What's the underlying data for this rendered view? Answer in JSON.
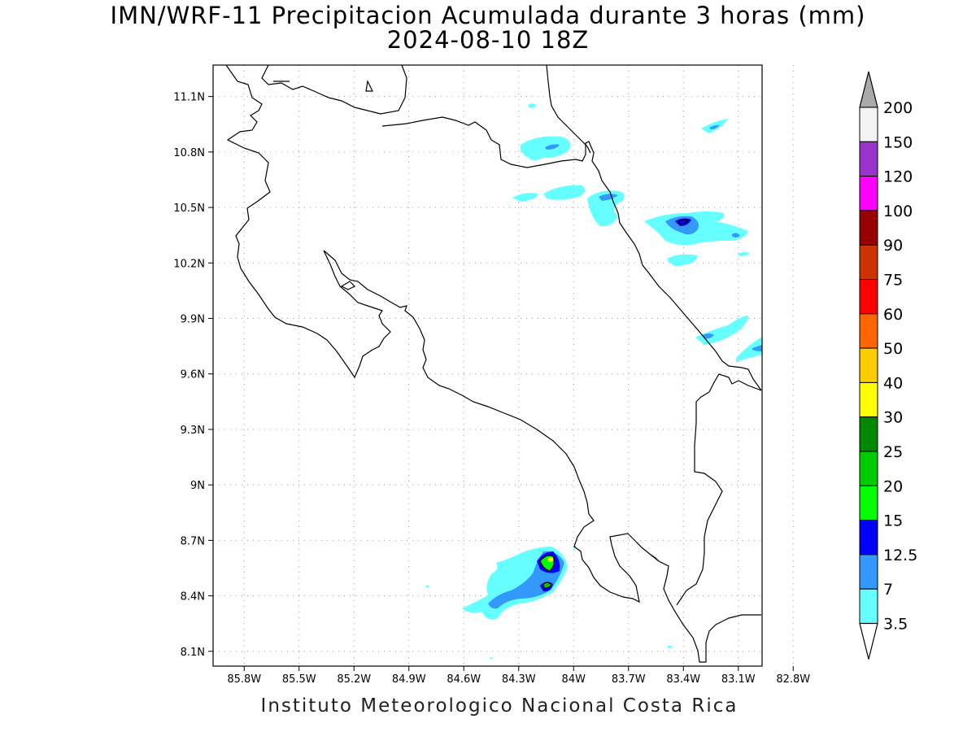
{
  "title": "IMN/WRF-11 Precipitacion Acumulada durante 3 horas (mm)",
  "subtitle": "2024-08-10 18Z",
  "footer": "Instituto Meteorologico Nacional Costa Rica",
  "axes": {
    "x_ticks": [
      "85.8W",
      "85.5W",
      "85.2W",
      "84.9W",
      "84.6W",
      "84.3W",
      "84W",
      "83.7W",
      "83.4W",
      "83.1W",
      "82.8W"
    ],
    "x_values": [
      -85.8,
      -85.5,
      -85.2,
      -84.9,
      -84.6,
      -84.3,
      -84.0,
      -83.7,
      -83.4,
      -83.1,
      -82.8
    ],
    "y_ticks": [
      "11.1N",
      "10.8N",
      "10.5N",
      "10.2N",
      "9.9N",
      "9.6N",
      "9.3N",
      "9N",
      "8.7N",
      "8.4N",
      "8.1N"
    ],
    "y_values": [
      11.1,
      10.8,
      10.5,
      10.2,
      9.9,
      9.6,
      9.3,
      9.0,
      8.7,
      8.4,
      8.1
    ],
    "lon_range": [
      -85.97,
      -82.97
    ],
    "lat_range": [
      8.02,
      11.27
    ],
    "grid": true
  },
  "colorbar": {
    "labels": [
      "200",
      "150",
      "120",
      "100",
      "90",
      "75",
      "60",
      "50",
      "40",
      "30",
      "25",
      "20",
      "15",
      "12.5",
      "7",
      "3.5"
    ],
    "colors": [
      "#f4f4f4",
      "#9933cc",
      "#ff00ff",
      "#990000",
      "#cc3300",
      "#ff0000",
      "#ff6600",
      "#ffcc00",
      "#ffff00",
      "#008800",
      "#00cc00",
      "#00ff00",
      "#0000ff",
      "#3399ff",
      "#66ffff"
    ],
    "overflow_color": "#aaaaaa"
  },
  "precip_levels": {
    "3.5": "#66ffff",
    "7": "#3399ff",
    "12.5": "#0000ff",
    "15": "#00ff00",
    "20": "#00cc00"
  }
}
